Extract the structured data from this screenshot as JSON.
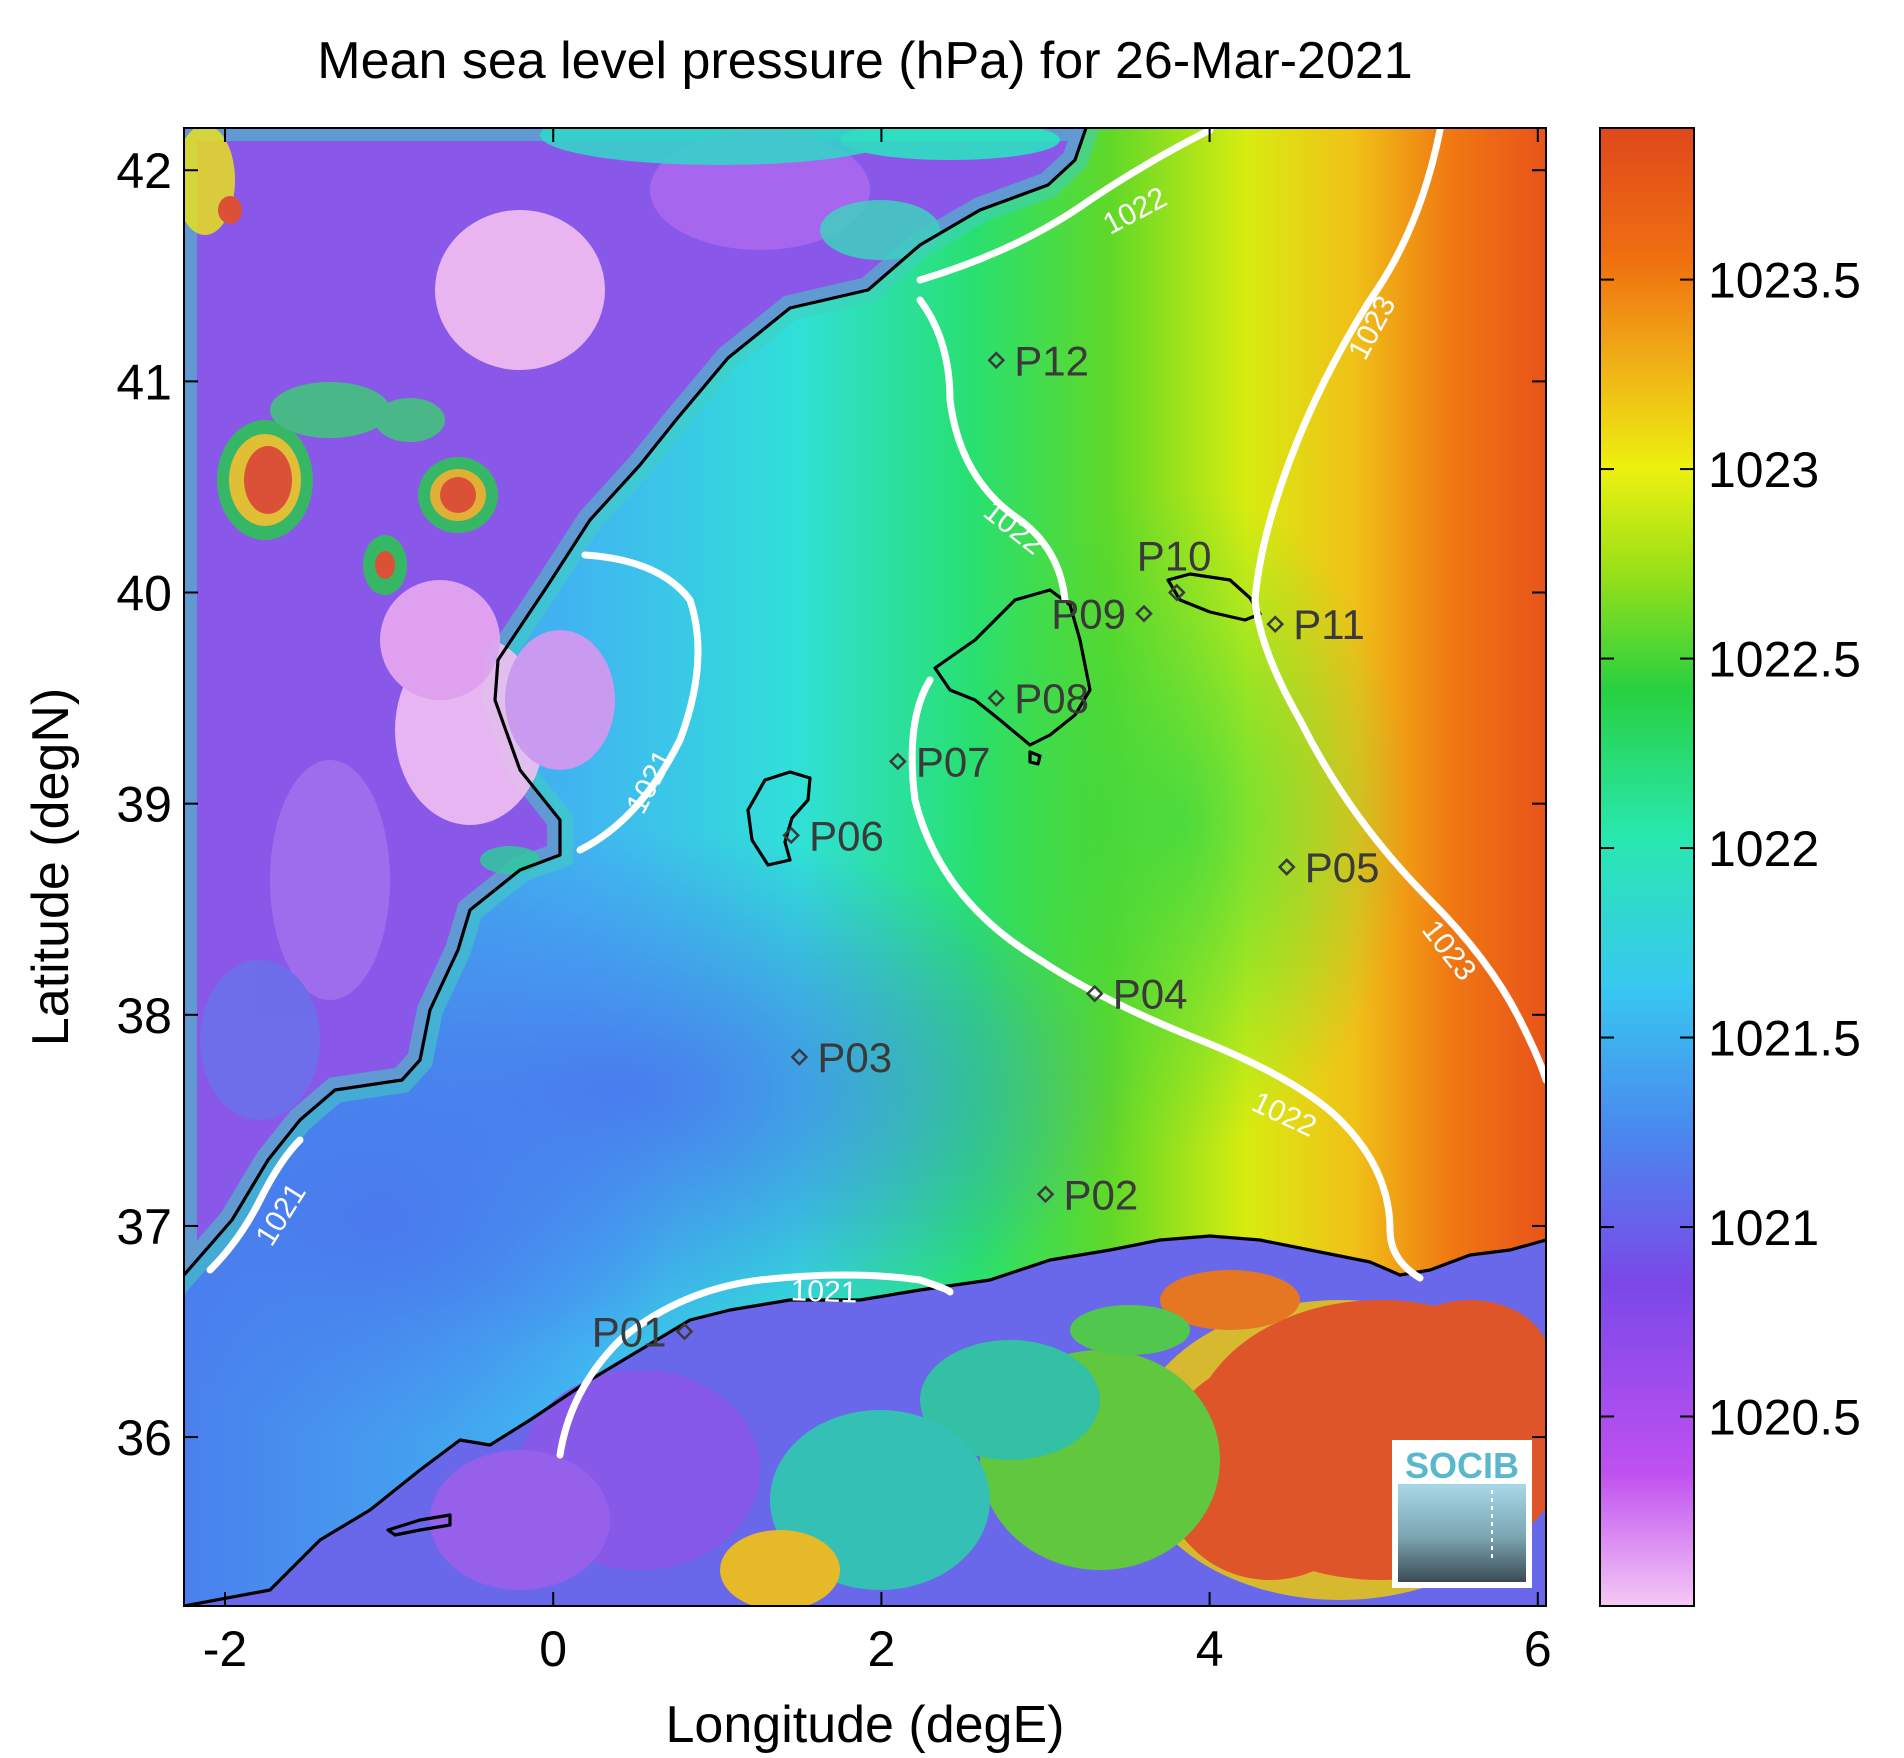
{
  "title": "Mean sea level pressure (hPa) for 26-Mar-2021",
  "xlabel": "Longitude (degE)",
  "ylabel": "Latitude (degN)",
  "xlim": [
    -2.25,
    6.05
  ],
  "ylim": [
    35.2,
    42.2
  ],
  "x_ticks": [
    -2,
    0,
    2,
    4,
    6
  ],
  "x_tick_labels": [
    "-2",
    "0",
    "2",
    "4",
    "6"
  ],
  "y_ticks": [
    36,
    37,
    38,
    39,
    40,
    41,
    42
  ],
  "y_tick_labels": [
    "36",
    "37",
    "38",
    "39",
    "40",
    "41",
    "42"
  ],
  "colorbar": {
    "range": [
      1020.0,
      1023.9
    ],
    "ticks": [
      1020.5,
      1021,
      1021.5,
      1022,
      1022.5,
      1023,
      1023.5
    ],
    "tick_labels": [
      "1020.5",
      "1021",
      "1021.5",
      "1022",
      "1022.5",
      "1023",
      "1023.5"
    ],
    "colormap": [
      "#f5c8f5",
      "#b040f0",
      "#3ba0f0",
      "#28e8e0",
      "#28d050",
      "#e8f010",
      "#f08a10",
      "#e8501a"
    ]
  },
  "stations": [
    {
      "id": "P01",
      "lon": 0.8,
      "lat": 36.5,
      "label_side": "left"
    },
    {
      "id": "P02",
      "lon": 3.0,
      "lat": 37.15,
      "label_side": "right"
    },
    {
      "id": "P03",
      "lon": 1.5,
      "lat": 37.8,
      "label_side": "right"
    },
    {
      "id": "P04",
      "lon": 3.3,
      "lat": 38.1,
      "label_side": "right"
    },
    {
      "id": "P05",
      "lon": 4.47,
      "lat": 38.7,
      "label_side": "right"
    },
    {
      "id": "P06",
      "lon": 1.45,
      "lat": 38.85,
      "label_side": "right"
    },
    {
      "id": "P07",
      "lon": 2.1,
      "lat": 39.2,
      "label_side": "right"
    },
    {
      "id": "P08",
      "lon": 2.7,
      "lat": 39.5,
      "label_side": "right"
    },
    {
      "id": "P09",
      "lon": 3.6,
      "lat": 39.9,
      "label_side": "left"
    },
    {
      "id": "P10",
      "lon": 3.8,
      "lat": 40.0,
      "label_side": "above"
    },
    {
      "id": "P11",
      "lon": 4.4,
      "lat": 39.85,
      "label_side": "right"
    },
    {
      "id": "P12",
      "lon": 2.7,
      "lat": 41.1,
      "label_side": "right"
    }
  ],
  "contour_labels": [
    {
      "text": "1022",
      "lon": 3.55,
      "lat": 41.8,
      "angle": -28
    },
    {
      "text": "1023",
      "lon": 5.0,
      "lat": 41.25,
      "angle": -62
    },
    {
      "text": "1022",
      "lon": 2.8,
      "lat": 40.3,
      "angle": 38
    },
    {
      "text": "1021",
      "lon": 0.6,
      "lat": 39.1,
      "angle": -62
    },
    {
      "text": "1023",
      "lon": 5.45,
      "lat": 38.3,
      "angle": 52
    },
    {
      "text": "1022",
      "lon": 4.45,
      "lat": 37.52,
      "angle": 25
    },
    {
      "text": "1021",
      "lon": -1.65,
      "lat": 37.05,
      "angle": -58
    },
    {
      "text": "1021",
      "lon": 1.65,
      "lat": 36.68,
      "angle": 2
    }
  ],
  "logo": {
    "text": "SOCIB"
  }
}
